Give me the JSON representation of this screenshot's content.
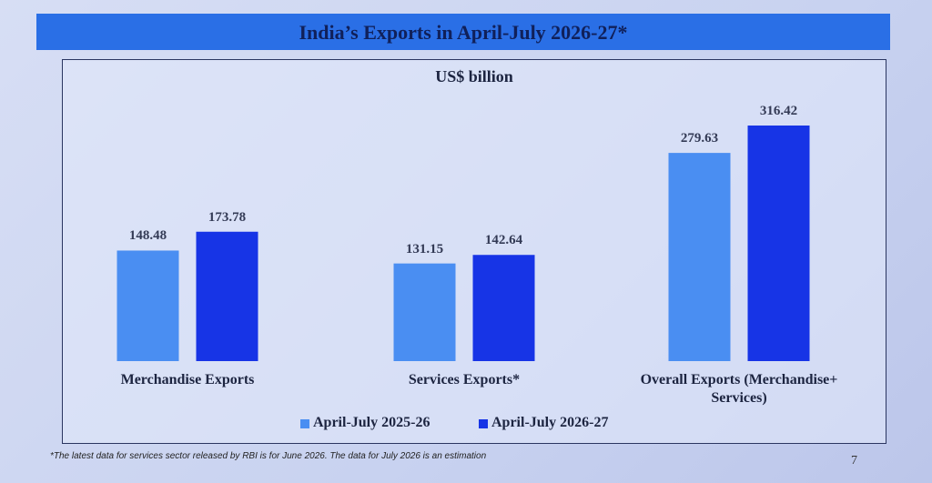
{
  "chart_data": {
    "type": "bar",
    "title": "India’s Exports in April-July 2026-27*",
    "subtitle": "US$ billion",
    "categories": [
      "Merchandise Exports",
      "Services Exports*",
      "Overall Exports (Merchandise+ Services)"
    ],
    "series": [
      {
        "name": "April-July 2025-26",
        "color": "#4a8ef2",
        "values": [
          148.48,
          131.15,
          279.63
        ]
      },
      {
        "name": "April-July 2026-27",
        "color": "#1734e6",
        "values": [
          173.78,
          142.64,
          316.42
        ]
      }
    ],
    "legend": "bottom"
  },
  "footnote": "*The latest data for services sector released by RBI is for June 2026. The data for July 2026 is an estimation",
  "page_number": 7
}
